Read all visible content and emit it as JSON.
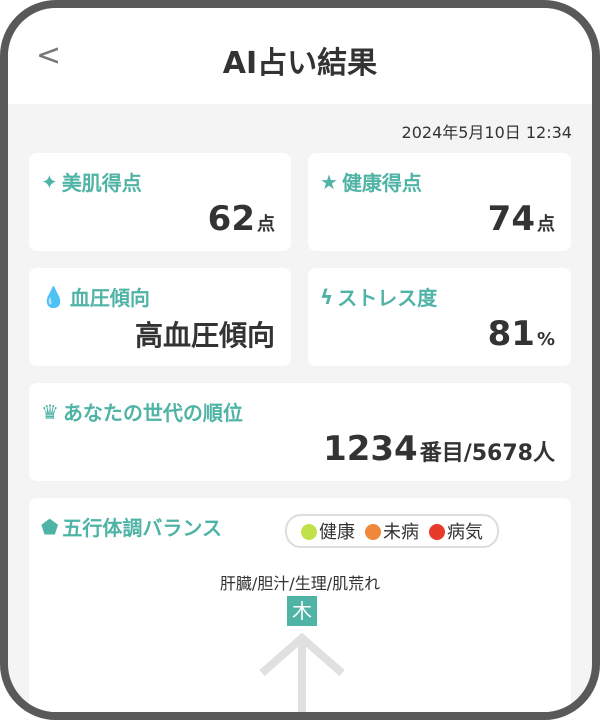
{
  "header": {
    "back_icon": "chevron-left-icon",
    "title": "AI占い結果"
  },
  "date": "2024年5月10日 12:34",
  "cards": {
    "beauty": {
      "icon": "sparkle-icon",
      "label": "美肌得点",
      "value": "62",
      "unit": "点"
    },
    "health": {
      "icon": "star-icon",
      "label": "健康得点",
      "value": "74",
      "unit": "点"
    },
    "blood": {
      "icon": "drop-icon",
      "label": "血圧傾向",
      "value": "高血圧傾向"
    },
    "stress": {
      "icon": "lightning-icon",
      "label": "ストレス度",
      "value": "81",
      "unit": "%"
    },
    "rank": {
      "icon": "crown-icon",
      "label": "あなたの世代の順位",
      "value": "1234",
      "suffix": "番目/5678人"
    }
  },
  "balance": {
    "icon": "pentagon-icon",
    "label": "五行体調バランス",
    "legend": [
      {
        "label": "健康",
        "color": "#c2e04a"
      },
      {
        "label": "未病",
        "color": "#f0883a"
      },
      {
        "label": "病気",
        "color": "#e63a2a"
      }
    ],
    "top_organs": "肝臓/胆汁/生理/肌荒れ",
    "top_element": "木"
  },
  "colors": {
    "accent": "#4fb3a5"
  }
}
